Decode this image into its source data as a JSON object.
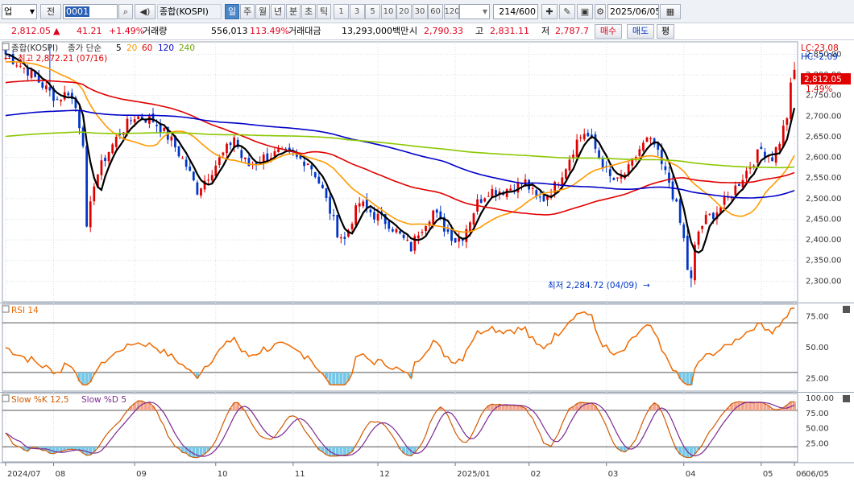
{
  "toolbar": {
    "market_select": "업",
    "all_label": "전",
    "code": "0001",
    "search_icon": "search-icon",
    "sound_icon": "speaker-icon",
    "name": "종합(KOSPI)",
    "periods": [
      "일",
      "주",
      "월",
      "년",
      "분",
      "초",
      "틱"
    ],
    "active_period": "일",
    "intervals": [
      "1",
      "3",
      "5",
      "10",
      "20",
      "30",
      "60",
      "120"
    ],
    "interval_value": "",
    "count": "214",
    "count_total": "/600",
    "date": "2025/06/05"
  },
  "quote": {
    "price": "2,812.05",
    "change_arrow": "▲",
    "change": "41.21",
    "change_pct": "+1.49%",
    "volume_label": "거래량",
    "volume": "556,013",
    "volume_ratio": "113.49%",
    "amount_label": "거래대금",
    "amount": "13,293,000백만",
    "open_label": "시",
    "open": "2,790.33",
    "high_label": "고",
    "high": "2,831.11",
    "low_label": "저",
    "low": "2,787.7",
    "buy_label": "매수",
    "sell_label": "매도",
    "extra_label": "평"
  },
  "price_panel": {
    "legend_name": "종합(KOSPI)",
    "legend_ma": "종가 단순",
    "ma_periods": [
      "5",
      "20",
      "60",
      "120",
      "240"
    ],
    "ma_colors": [
      "#000000",
      "#ff9a00",
      "#e00000",
      "#0000c8",
      "#8cc800"
    ],
    "high_marker": "최고 2,872.21 (07/16)",
    "low_marker": "최저 2,284.72 (04/09)",
    "lc": "LC:23.08",
    "hc": "HC:-2.09",
    "last_price_box": "2,812.05",
    "last_pct": "1.49%",
    "y_ticks": [
      "2,850.00",
      "2,800.00",
      "2,750.00",
      "2,700.00",
      "2,650.00",
      "2,600.00",
      "2,550.00",
      "2,500.00",
      "2,450.00",
      "2,400.00",
      "2,350.00",
      "2,300.00"
    ],
    "y_values": [
      2850,
      2800,
      2750,
      2700,
      2650,
      2600,
      2550,
      2500,
      2450,
      2400,
      2350,
      2300
    ]
  },
  "rsi_panel": {
    "legend": "RSI 14",
    "y_ticks": [
      "75.00",
      "50.00",
      "25.00"
    ],
    "y_values": [
      75,
      50,
      25
    ],
    "levels": [
      70,
      30
    ],
    "color": "#ee6a00"
  },
  "stoch_panel": {
    "legend_k": "Slow %K 12,5",
    "legend_d": "Slow %D 5",
    "y_ticks": [
      "100.00",
      "75.00",
      "50.00",
      "25.00"
    ],
    "y_values": [
      100,
      75,
      50,
      25
    ],
    "levels": [
      80,
      20
    ],
    "color_k": "#d05a00",
    "color_d": "#7a2a90"
  },
  "x_axis": {
    "labels": [
      "2024/07",
      "08",
      "09",
      "10",
      "11",
      "12",
      "2025/01",
      "02",
      "03",
      "04",
      "05",
      "06"
    ],
    "end_label": "06/05"
  },
  "chart_data": {
    "type": "candlestick",
    "title": "종합(KOSPI)",
    "x_range": [
      "2024/07",
      "2025/06/05"
    ],
    "ylim": [
      2250,
      2880
    ],
    "rsi_ylim": [
      15,
      85
    ],
    "stoch_ylim": [
      -5,
      108
    ],
    "anchors": [
      {
        "i": 0,
        "c": 2850
      },
      {
        "i": 6,
        "c": 2810
      },
      {
        "i": 10,
        "c": 2775
      },
      {
        "i": 14,
        "c": 2740
      },
      {
        "i": 17,
        "c": 2760
      },
      {
        "i": 19,
        "c": 2720
      },
      {
        "i": 21,
        "c": 2640
      },
      {
        "i": 22,
        "c": 2420
      },
      {
        "i": 24,
        "c": 2540
      },
      {
        "i": 27,
        "c": 2600
      },
      {
        "i": 31,
        "c": 2660
      },
      {
        "i": 35,
        "c": 2700
      },
      {
        "i": 40,
        "c": 2690
      },
      {
        "i": 45,
        "c": 2640
      },
      {
        "i": 49,
        "c": 2580
      },
      {
        "i": 52,
        "c": 2520
      },
      {
        "i": 56,
        "c": 2570
      },
      {
        "i": 60,
        "c": 2620
      },
      {
        "i": 62,
        "c": 2650
      },
      {
        "i": 64,
        "c": 2600
      },
      {
        "i": 66,
        "c": 2580
      },
      {
        "i": 70,
        "c": 2600
      },
      {
        "i": 74,
        "c": 2610
      },
      {
        "i": 78,
        "c": 2600
      },
      {
        "i": 82,
        "c": 2590
      },
      {
        "i": 84,
        "c": 2560
      },
      {
        "i": 86,
        "c": 2520
      },
      {
        "i": 88,
        "c": 2470
      },
      {
        "i": 90,
        "c": 2420
      },
      {
        "i": 92,
        "c": 2400
      },
      {
        "i": 94,
        "c": 2450
      },
      {
        "i": 96,
        "c": 2490
      },
      {
        "i": 100,
        "c": 2460
      },
      {
        "i": 104,
        "c": 2440
      },
      {
        "i": 108,
        "c": 2400
      },
      {
        "i": 110,
        "c": 2380
      },
      {
        "i": 112,
        "c": 2420
      },
      {
        "i": 116,
        "c": 2470
      },
      {
        "i": 119,
        "c": 2430
      },
      {
        "i": 122,
        "c": 2400
      },
      {
        "i": 124,
        "c": 2410
      },
      {
        "i": 126,
        "c": 2450
      },
      {
        "i": 128,
        "c": 2490
      },
      {
        "i": 131,
        "c": 2520
      },
      {
        "i": 135,
        "c": 2520
      },
      {
        "i": 138,
        "c": 2530
      },
      {
        "i": 141,
        "c": 2540
      },
      {
        "i": 144,
        "c": 2500
      },
      {
        "i": 146,
        "c": 2500
      },
      {
        "i": 149,
        "c": 2530
      },
      {
        "i": 152,
        "c": 2580
      },
      {
        "i": 155,
        "c": 2640
      },
      {
        "i": 157,
        "c": 2660
      },
      {
        "i": 159,
        "c": 2640
      },
      {
        "i": 161,
        "c": 2600
      },
      {
        "i": 164,
        "c": 2550
      },
      {
        "i": 166,
        "c": 2540
      },
      {
        "i": 169,
        "c": 2570
      },
      {
        "i": 172,
        "c": 2620
      },
      {
        "i": 174,
        "c": 2640
      },
      {
        "i": 176,
        "c": 2630
      },
      {
        "i": 178,
        "c": 2580
      },
      {
        "i": 180,
        "c": 2540
      },
      {
        "i": 182,
        "c": 2480
      },
      {
        "i": 184,
        "c": 2400
      },
      {
        "i": 185,
        "c": 2330
      },
      {
        "i": 186,
        "c": 2300
      },
      {
        "i": 187,
        "c": 2380
      },
      {
        "i": 188,
        "c": 2420
      },
      {
        "i": 190,
        "c": 2450
      },
      {
        "i": 193,
        "c": 2470
      },
      {
        "i": 196,
        "c": 2500
      },
      {
        "i": 199,
        "c": 2540
      },
      {
        "i": 202,
        "c": 2580
      },
      {
        "i": 205,
        "c": 2620
      },
      {
        "i": 208,
        "c": 2600
      },
      {
        "i": 210,
        "c": 2640
      },
      {
        "i": 212,
        "c": 2700
      },
      {
        "i": 213,
        "c": 2770
      },
      {
        "i": 214,
        "c": 2812
      }
    ],
    "last": {
      "open": 2790.33,
      "high": 2831.11,
      "low": 2787.7,
      "close": 2812.05
    },
    "high_point": {
      "value": 2872.21,
      "date": "07/16"
    },
    "low_point": {
      "value": 2284.72,
      "date": "04/09"
    },
    "series": [
      {
        "name": "종가 단순 5",
        "period": 5
      },
      {
        "name": "20",
        "period": 20
      },
      {
        "name": "60",
        "period": 60
      },
      {
        "name": "120",
        "period": 120
      },
      {
        "name": "240",
        "period": 240
      }
    ]
  }
}
